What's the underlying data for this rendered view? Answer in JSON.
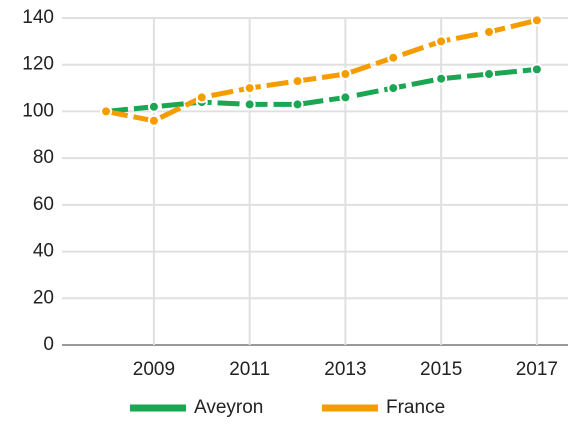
{
  "chart_data": {
    "type": "line",
    "x": [
      2008,
      2009,
      2010,
      2011,
      2012,
      2013,
      2014,
      2015,
      2016,
      2017
    ],
    "series": [
      {
        "name": "Aveyron",
        "color": "#1aa653",
        "values": [
          100,
          102,
          104,
          103,
          103,
          106,
          110,
          114,
          116,
          118
        ]
      },
      {
        "name": "France",
        "color": "#f59d00",
        "values": [
          100,
          96,
          106,
          110,
          113,
          116,
          123,
          130,
          134,
          139
        ]
      }
    ],
    "xlim": [
      2007.08,
      2017.65
    ],
    "xticks": [
      2009,
      2011,
      2013,
      2015,
      2017
    ],
    "ylim": [
      0,
      140
    ],
    "yticks": [
      0,
      20,
      40,
      60,
      80,
      100,
      120,
      140
    ],
    "grid": true,
    "legend": "bottom"
  }
}
